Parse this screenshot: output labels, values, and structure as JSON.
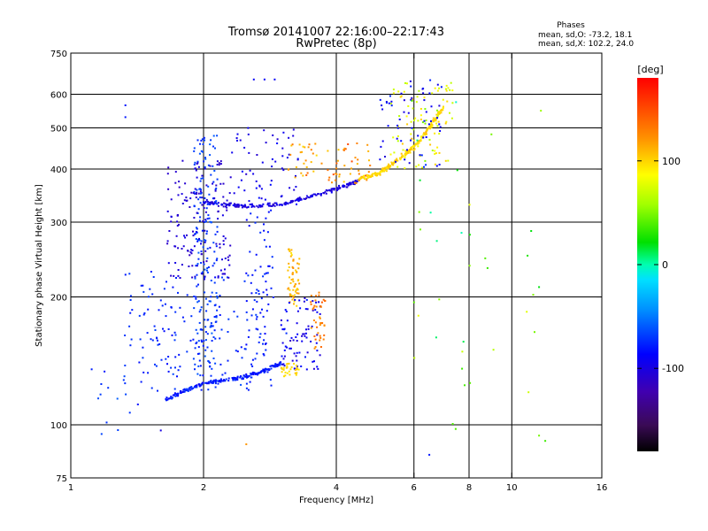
{
  "chart_data": {
    "type": "scatter",
    "title": "Tromsø 20141007 22:16:00–22:17:43",
    "subtitle": "RwPretec (8p)",
    "xlabel": "Frequency [MHz]",
    "ylabel": "Stationary phase Virtual Height [km]",
    "x_scale": "log",
    "y_scale": "log",
    "xlim": [
      1,
      16
    ],
    "ylim": [
      75,
      750
    ],
    "x_ticks": [
      1,
      2,
      4,
      6,
      8,
      10,
      16
    ],
    "x_tick_labels": [
      "1",
      "2",
      "4",
      "6",
      "8",
      "10",
      "16"
    ],
    "y_ticks": [
      75,
      100,
      200,
      300,
      400,
      500,
      600,
      750
    ],
    "y_tick_labels": [
      "75",
      "100",
      "200",
      "300",
      "400",
      "500",
      "600",
      "750"
    ],
    "grid_x": [
      2,
      4,
      6,
      8,
      10
    ],
    "grid_y": [
      100,
      200,
      300,
      400,
      500,
      600
    ],
    "phase_stats": {
      "heading": "Phases",
      "o_line": "mean, sd,O: -73.2, 18.1",
      "x_line": "mean, sd,X: 102.2, 24.0"
    },
    "colorbar": {
      "label": "[deg]",
      "range": [
        -180,
        180
      ],
      "ticks": [
        100,
        0,
        -100
      ],
      "tick_labels": [
        "100",
        "0",
        "-100"
      ],
      "colormap": "rainbow: black → purple → blue → cyan → green → yellow → orange → red"
    },
    "series": [
      {
        "shape": "E-layer trace, low edge",
        "x": [
          1.65,
          1.8,
          2.0,
          2.2,
          2.5,
          2.8,
          3.0
        ],
        "y": [
          115,
          120,
          125,
          127,
          130,
          135,
          140
        ],
        "phase": -80
      },
      {
        "shape": "F-layer trace, low edge",
        "x": [
          2.0,
          2.2,
          2.5,
          3.0,
          3.5,
          4.0,
          4.5
        ],
        "y": [
          335,
          330,
          327,
          330,
          345,
          360,
          375
        ],
        "phase": -100
      },
      {
        "shape": "X-mode trace",
        "x": [
          4.5,
          5.0,
          5.5,
          6.0,
          6.5,
          7.0
        ],
        "y": [
          380,
          390,
          420,
          450,
          500,
          560
        ],
        "phase": 100
      }
    ]
  }
}
